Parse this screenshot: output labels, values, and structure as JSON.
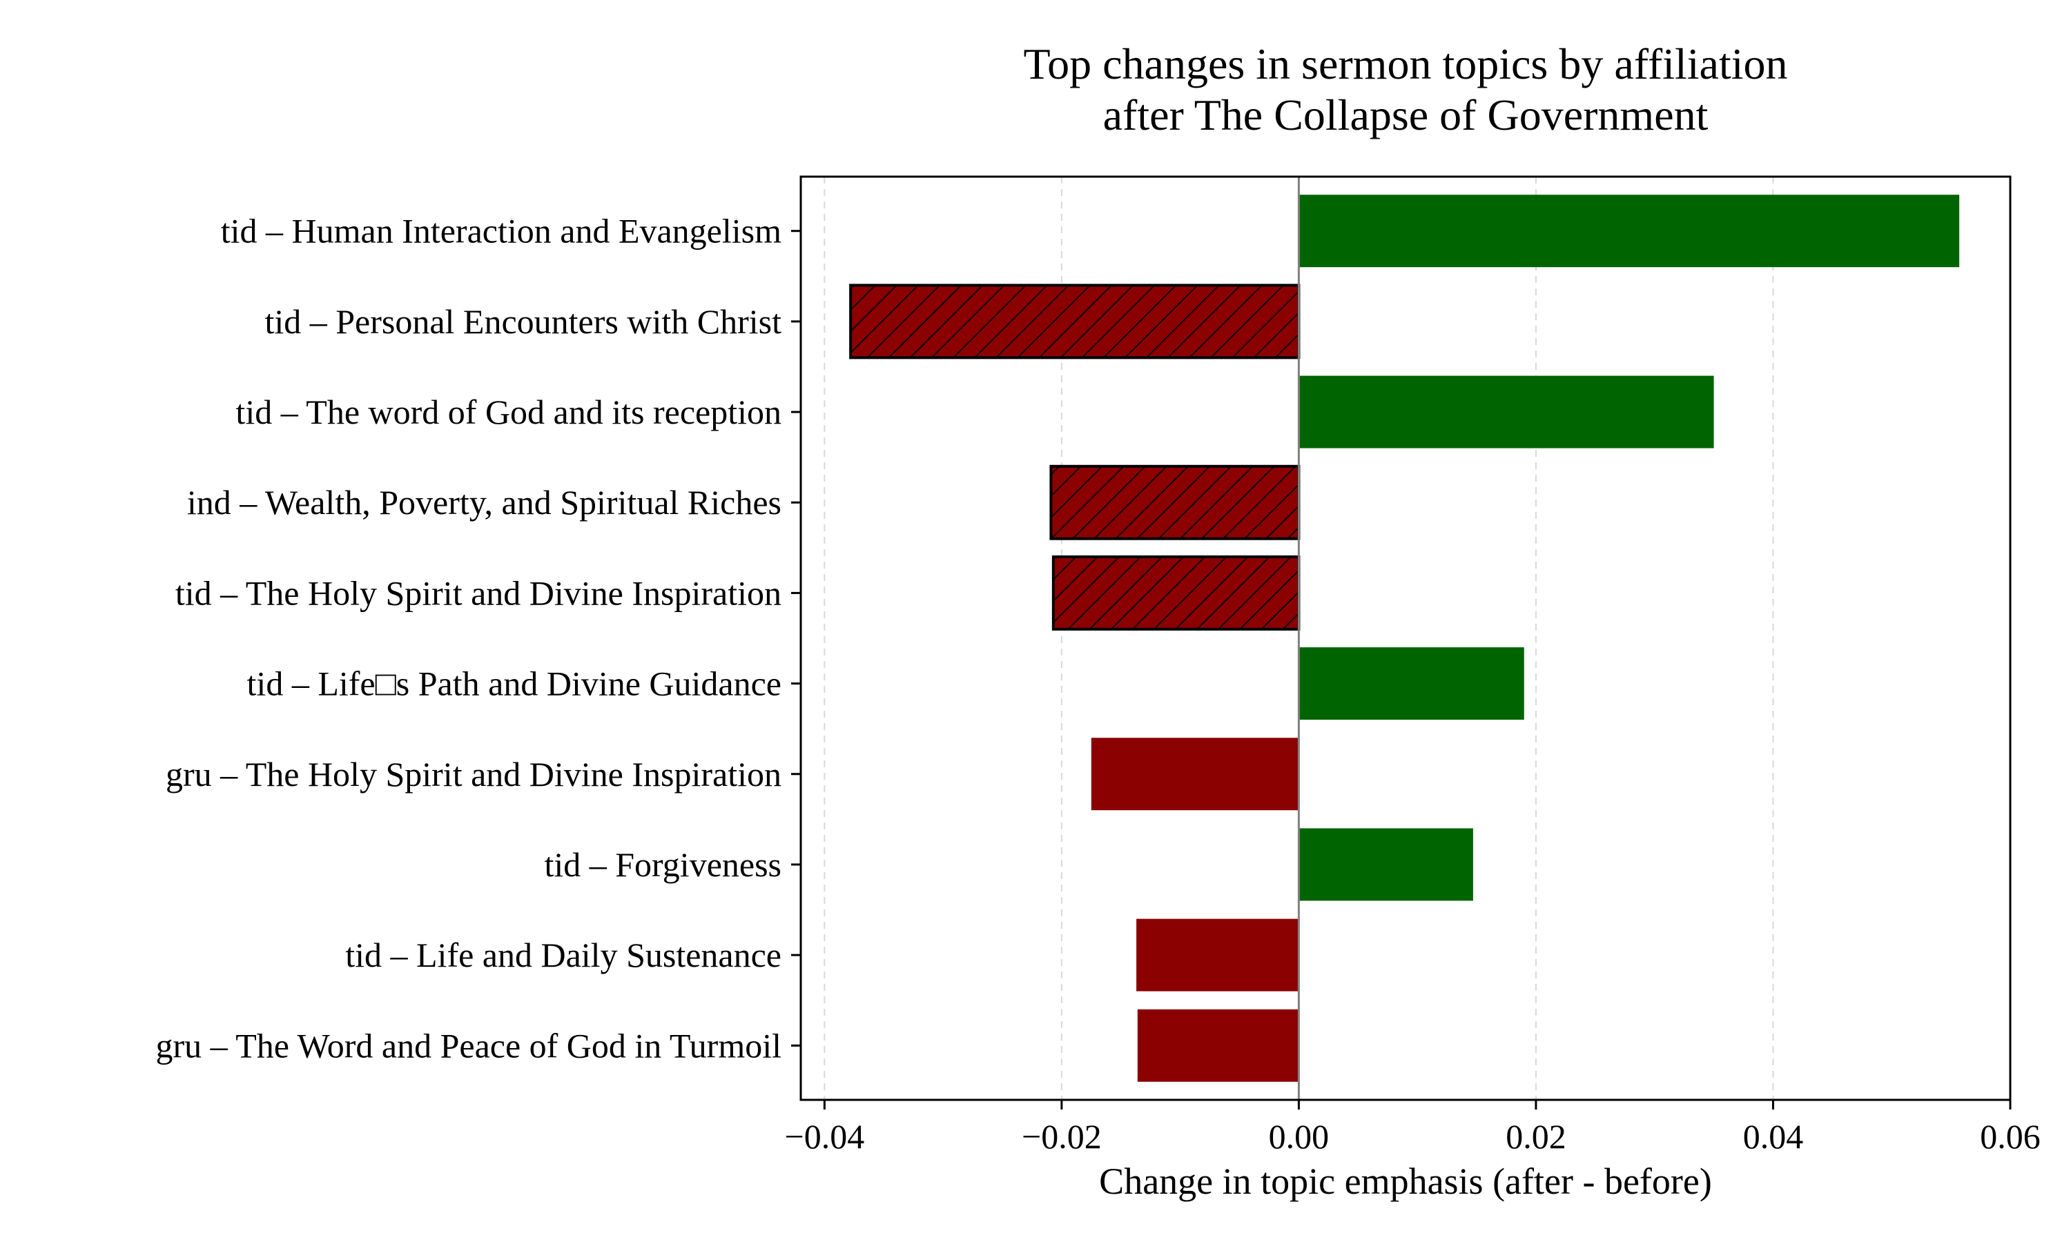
{
  "chart_data": {
    "type": "bar",
    "orientation": "horizontal",
    "title": "Top changes in sermon topics by affiliation\nafter The Collapse of Government",
    "xlabel": "Change in topic emphasis (after - before)",
    "ylabel": "",
    "xlim": [
      -0.042,
      0.06
    ],
    "xticks": [
      -0.04,
      -0.02,
      0.0,
      0.02,
      0.04,
      0.06
    ],
    "xtick_labels": [
      "−0.04",
      "−0.02",
      "0.00",
      "0.02",
      "0.04",
      "0.06"
    ],
    "grid": "vertical dashed",
    "zero_line": true,
    "categories": [
      "tid – Human Interaction and  Evangelism",
      "tid – Personal Encounters with Christ",
      "tid – The word of God and its reception",
      "ind – Wealth, Poverty, and Spiritual Riches",
      "tid – The Holy Spirit and Divine Inspiration",
      "tid – Life□s Path and Divine Guidance",
      "gru – The Holy Spirit and Divine Inspiration",
      "tid – Forgiveness",
      "tid – Life and Daily Sustenance",
      "gru – The Word and Peace of God in Turmoil"
    ],
    "values": [
      0.0557,
      -0.0378,
      0.035,
      -0.0209,
      -0.0207,
      0.019,
      -0.0175,
      0.0147,
      -0.0137,
      -0.0136
    ],
    "hatched": [
      false,
      true,
      false,
      true,
      true,
      false,
      false,
      false,
      false,
      false
    ],
    "colors": {
      "positive": "#006400",
      "negative": "#8b0000",
      "edge": "#000000",
      "zero_line": "#808080",
      "grid": "#d9d9d9"
    }
  }
}
